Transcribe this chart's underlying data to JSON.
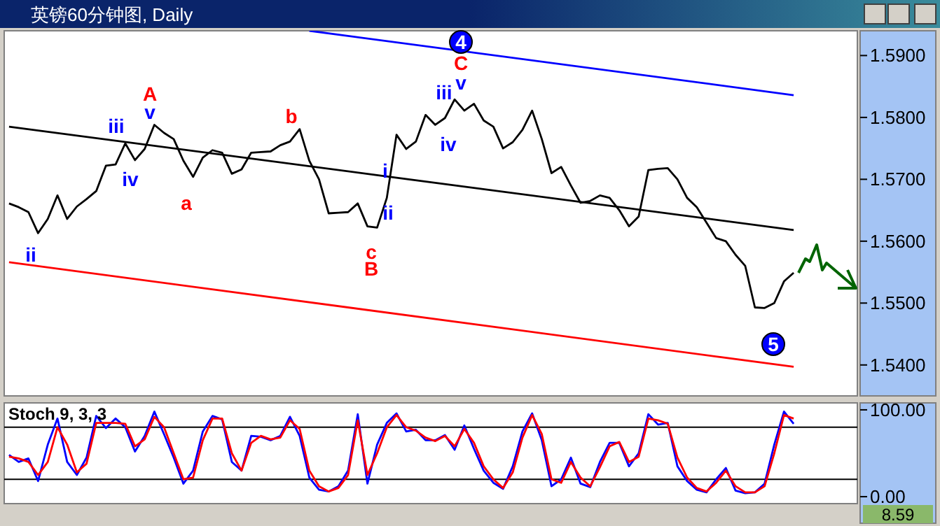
{
  "chart_data": [
    {
      "type": "line",
      "title": "英镑60分钟图, Daily",
      "ylim": [
        1.535,
        1.594
      ],
      "tick_labels": "y",
      "categories": [
        null,
        null,
        null,
        null,
        null,
        null,
        null,
        null,
        null,
        null,
        null,
        null,
        null,
        null,
        null,
        null,
        null,
        null,
        null,
        null,
        null,
        null,
        null,
        null,
        null,
        null,
        null,
        null,
        null,
        null,
        null,
        null,
        null,
        null,
        null,
        null,
        null,
        null,
        null,
        null,
        null,
        null,
        null,
        null,
        null,
        null,
        null,
        null,
        null,
        null,
        null,
        null,
        null,
        null,
        null,
        null,
        null,
        null,
        null,
        null,
        null,
        null,
        null,
        null,
        null,
        null,
        null,
        null,
        null,
        null,
        null,
        null,
        null,
        null,
        null,
        null,
        null,
        null,
        null,
        null,
        null,
        null
      ],
      "yticks": [
        {
          "value": 1.54,
          "label": "1.5400"
        },
        {
          "value": 1.55,
          "label": "1.5500"
        },
        {
          "value": 1.56,
          "label": "1.5600"
        },
        {
          "value": 1.57,
          "label": "1.5700"
        },
        {
          "value": 1.58,
          "label": "1.5800"
        },
        {
          "value": 1.59,
          "label": "1.5900"
        }
      ],
      "annotations": [
        "A",
        "v",
        "iii",
        "iv",
        "ii",
        "a",
        "b",
        "c",
        "B",
        "i",
        "ii",
        "iii",
        "iv",
        "v",
        "C",
        "4",
        "5"
      ],
      "series": [
        {
          "color": "#000000",
          "values": [
            1.5661,
            1.5655,
            1.5647,
            1.5613,
            1.5636,
            1.5674,
            1.5636,
            1.5656,
            1.5668,
            1.5681,
            1.5722,
            1.5724,
            1.5758,
            1.5731,
            1.5749,
            1.5788,
            1.5775,
            1.5765,
            1.573,
            1.5704,
            1.5735,
            1.5747,
            1.5743,
            1.5709,
            1.5716,
            1.5743,
            1.5744,
            1.5745,
            1.5755,
            1.5761,
            1.5781,
            1.573,
            1.57,
            1.5645,
            1.5646,
            1.5647,
            1.5661,
            1.5624,
            1.5622,
            1.567,
            1.5772,
            1.5749,
            1.5761,
            1.5804,
            1.5788,
            1.5799,
            1.5829,
            1.5811,
            1.5822,
            1.5795,
            1.5785,
            1.575,
            1.576,
            1.578,
            1.5811,
            1.5765,
            1.571,
            1.572,
            1.569,
            1.5662,
            1.5665,
            1.5674,
            1.567,
            1.565,
            1.5624,
            1.564,
            1.5715,
            1.5717,
            1.5718,
            1.57,
            1.567,
            1.5655,
            1.563,
            1.5605,
            1.56,
            1.5578,
            1.556,
            1.5493,
            1.5492,
            1.55,
            1.5535,
            1.5549
          ]
        },
        {
          "color": "#000000",
          "values": [
            1.5785,
            null,
            null,
            null,
            null,
            null,
            null,
            null,
            null,
            null,
            null,
            null,
            null,
            null,
            null,
            null,
            null,
            null,
            null,
            null,
            null,
            null,
            null,
            null,
            null,
            null,
            null,
            null,
            null,
            null,
            null,
            null,
            null,
            null,
            null,
            null,
            null,
            null,
            null,
            null,
            null,
            null,
            null,
            null,
            null,
            null,
            null,
            null,
            null,
            null,
            null,
            null,
            null,
            null,
            null,
            null,
            null,
            null,
            null,
            null,
            null,
            null,
            null,
            null,
            null,
            null,
            null,
            null,
            null,
            null,
            null,
            null,
            null,
            null,
            null,
            null,
            null,
            null,
            null,
            null,
            null,
            1.5618
          ]
        },
        {
          "color": "#0000ff",
          "values": [
            null,
            null,
            null,
            null,
            null,
            null,
            null,
            null,
            null,
            null,
            null,
            null,
            null,
            null,
            null,
            null,
            null,
            null,
            null,
            null,
            null,
            null,
            null,
            null,
            null,
            null,
            null,
            null,
            null,
            null,
            null,
            1.594,
            null,
            null,
            null,
            null,
            null,
            null,
            null,
            null,
            null,
            null,
            null,
            null,
            null,
            null,
            null,
            null,
            null,
            null,
            null,
            null,
            null,
            null,
            null,
            null,
            null,
            null,
            null,
            null,
            null,
            null,
            null,
            null,
            null,
            null,
            null,
            null,
            null,
            null,
            null,
            null,
            null,
            null,
            null,
            null,
            null,
            null,
            null,
            null,
            null,
            1.5836
          ]
        },
        {
          "color": "#ff0000",
          "values": [
            1.5566,
            null,
            null,
            null,
            null,
            null,
            null,
            null,
            null,
            null,
            null,
            null,
            null,
            null,
            null,
            null,
            null,
            null,
            null,
            null,
            null,
            null,
            null,
            null,
            null,
            null,
            null,
            null,
            null,
            null,
            null,
            null,
            null,
            null,
            null,
            null,
            null,
            null,
            null,
            null,
            null,
            null,
            null,
            null,
            null,
            null,
            null,
            null,
            null,
            null,
            null,
            null,
            null,
            null,
            null,
            null,
            null,
            null,
            null,
            null,
            null,
            null,
            null,
            null,
            null,
            null,
            null,
            null,
            null,
            null,
            null,
            null,
            null,
            null,
            null,
            null,
            null,
            null,
            null,
            null,
            null,
            1.5397
          ]
        }
      ]
    },
    {
      "type": "line",
      "title": "Stoch 9, 3, 3",
      "ylim": [
        -8,
        108
      ],
      "tick_labels": "y",
      "categories": [
        null,
        null,
        null,
        null,
        null,
        null,
        null,
        null,
        null,
        null,
        null,
        null,
        null,
        null,
        null,
        null,
        null,
        null,
        null,
        null,
        null,
        null,
        null,
        null,
        null,
        null,
        null,
        null,
        null,
        null,
        null,
        null,
        null,
        null,
        null,
        null,
        null,
        null,
        null,
        null,
        null,
        null,
        null,
        null,
        null,
        null,
        null,
        null,
        null,
        null,
        null,
        null,
        null,
        null,
        null,
        null,
        null,
        null,
        null,
        null,
        null,
        null,
        null,
        null,
        null,
        null,
        null,
        null,
        null,
        null,
        null,
        null,
        null,
        null,
        null,
        null,
        null,
        null,
        null,
        null,
        null,
        null
      ],
      "yticks": [
        {
          "value": 100,
          "label": "100.00"
        },
        {
          "value": 0,
          "label": "0.00"
        }
      ],
      "ref_lines": [
        {
          "axis": "y",
          "value": 80,
          "color": "#000000"
        },
        {
          "axis": "y",
          "value": 20,
          "color": "#000000"
        }
      ],
      "annotations": [
        "8.59"
      ],
      "series": [
        {
          "color": "#0000ff",
          "values": [
            48,
            40,
            44,
            18,
            60,
            90,
            40,
            25,
            45,
            93,
            79,
            90,
            80,
            52,
            70,
            98,
            72,
            45,
            15,
            30,
            75,
            93,
            89,
            40,
            30,
            70,
            69,
            65,
            70,
            92,
            70,
            22,
            8,
            6,
            12,
            30,
            95,
            15,
            60,
            85,
            96,
            75,
            77,
            65,
            65,
            71,
            54,
            82,
            55,
            30,
            16,
            9,
            35,
            75,
            96,
            65,
            12,
            20,
            45,
            15,
            11,
            40,
            62,
            62,
            35,
            50,
            95,
            83,
            85,
            35,
            18,
            8,
            5,
            20,
            33,
            7,
            4,
            5,
            15,
            60,
            98,
            84
          ]
        },
        {
          "color": "#ff0000",
          "values": [
            46,
            44,
            40,
            25,
            40,
            80,
            60,
            28,
            38,
            85,
            85,
            85,
            84,
            58,
            66,
            92,
            80,
            50,
            20,
            22,
            65,
            90,
            90,
            50,
            30,
            62,
            70,
            66,
            68,
            88,
            78,
            30,
            12,
            6,
            10,
            25,
            88,
            25,
            50,
            80,
            94,
            80,
            76,
            68,
            64,
            70,
            58,
            78,
            62,
            35,
            20,
            10,
            28,
            68,
            94,
            72,
            20,
            16,
            40,
            22,
            12,
            34,
            58,
            63,
            40,
            46,
            90,
            88,
            84,
            45,
            22,
            10,
            6,
            16,
            30,
            12,
            5,
            5,
            12,
            50,
            94,
            90
          ]
        }
      ]
    }
  ]
}
